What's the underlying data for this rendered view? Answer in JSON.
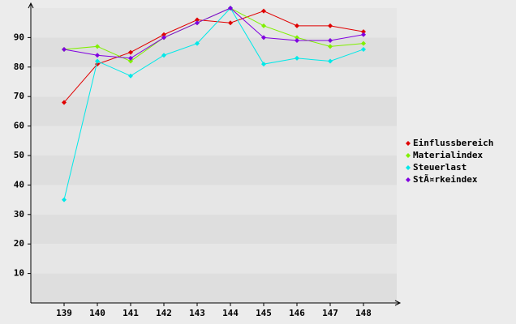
{
  "chart_data": {
    "type": "line",
    "categories": [
      "139",
      "140",
      "141",
      "142",
      "143",
      "144",
      "145",
      "146",
      "147",
      "148"
    ],
    "series": [
      {
        "name": "Einflussbereich",
        "color": "#e00000",
        "values": [
          68,
          81,
          85,
          91,
          96,
          95,
          99,
          94,
          94,
          92
        ]
      },
      {
        "name": "Materialindex",
        "color": "#80f000",
        "values": [
          86,
          87,
          82,
          90,
          95,
          100,
          94,
          90,
          87,
          88
        ]
      },
      {
        "name": "Steuerlast",
        "color": "#00e8e8",
        "values": [
          35,
          82,
          77,
          84,
          88,
          100,
          81,
          83,
          82,
          86
        ]
      },
      {
        "name": "StÃ¤rkeindex",
        "color": "#8000e0",
        "values": [
          86,
          84,
          83,
          90,
          95,
          100,
          90,
          89,
          89,
          91
        ]
      }
    ],
    "ylim": [
      0,
      100
    ],
    "yticks": [
      10,
      20,
      30,
      40,
      50,
      60,
      70,
      80,
      90
    ],
    "grid": true,
    "legend": "right"
  }
}
